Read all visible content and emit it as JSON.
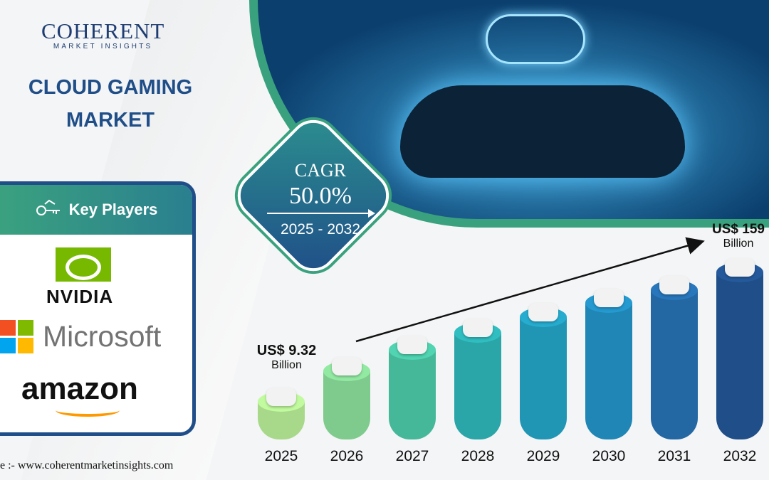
{
  "brand": {
    "name": "COHERENT",
    "tagline": "MARKET INSIGHTS"
  },
  "title_line1": "CLOUD GAMING",
  "title_line2": "MARKET",
  "key_players": {
    "heading": "Key Players",
    "icon": "handshake-key-icon",
    "players": [
      "NVIDIA",
      "Microsoft",
      "amazon"
    ]
  },
  "cagr": {
    "label": "CAGR",
    "value": "50.0%",
    "period": "2025 - 2032"
  },
  "source": "e :- www.coherentmarketinsights.com",
  "colors": {
    "navy": "#1f4e88",
    "green": "#3aa17f",
    "nvidia": "#76b900",
    "amazon_smile": "#ff9900",
    "microsoft": [
      "#f25022",
      "#7fba00",
      "#00a4ef",
      "#ffb900"
    ]
  },
  "chart_data": {
    "type": "bar",
    "categories": [
      "2025",
      "2026",
      "2027",
      "2028",
      "2029",
      "2030",
      "2031",
      "2032"
    ],
    "values": [
      9.32,
      null,
      null,
      null,
      null,
      null,
      null,
      159
    ],
    "value_labels": [
      {
        "year": "2025",
        "amount": "US$ 9.32",
        "unit": "Billion"
      },
      {
        "year": "2032",
        "amount": "US$ 159",
        "unit": "Billion"
      }
    ],
    "bar_colors": [
      "#a8d98a",
      "#7fcb8d",
      "#46b89a",
      "#2aa5a8",
      "#2196b4",
      "#1f86b5",
      "#2367a3",
      "#1f4e88"
    ],
    "grid": false,
    "legend": "none",
    "trend_arrow": true
  }
}
